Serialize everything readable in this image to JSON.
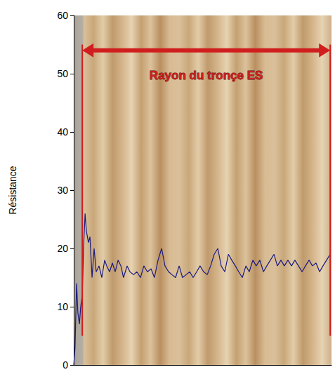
{
  "chart_data": {
    "type": "line",
    "y_label": "Résistance",
    "xlim": [
      0,
      100
    ],
    "ylim": [
      0,
      60
    ],
    "yticks": [
      0,
      10,
      20,
      30,
      40,
      50,
      60
    ],
    "grid": false,
    "tick_labels": "y",
    "color": "#1a1a80",
    "x": [
      0,
      0.5,
      1.1,
      1.6,
      2.2,
      2.7,
      3.3,
      3.8,
      4.4,
      4.9,
      5.7,
      6.3,
      7.1,
      7.9,
      8.7,
      9.8,
      10.9,
      12,
      12.8,
      13.9,
      15,
      16.1,
      17.2,
      18.3,
      19.3,
      20.7,
      21.8,
      23.2,
      24.5,
      25.9,
      27.2,
      28.6,
      30,
      31.3,
      32.7,
      34.1,
      35.4,
      36.8,
      38.1,
      39.5,
      40.9,
      42.2,
      43.6,
      45,
      46.3,
      47.7,
      49,
      50.4,
      51.8,
      53.1,
      54.5,
      55.9,
      57.2,
      58.6,
      60,
      61.3,
      62.7,
      64,
      65.4,
      66.8,
      68.1,
      69.5,
      70.8,
      72.2,
      73.6,
      74.9,
      76.3,
      77.7,
      79,
      80.4,
      81.7,
      83.1,
      84.5,
      85.8,
      87.2,
      88.6,
      89.9,
      91.3,
      92.6,
      94,
      95.4,
      96.7,
      98.1,
      99.5
    ],
    "values": [
      0,
      3,
      14,
      9,
      7,
      10,
      12,
      20,
      26,
      23,
      21,
      22,
      15,
      20,
      16,
      17,
      15,
      18,
      17,
      16,
      17.5,
      16,
      18,
      17,
      15,
      17,
      16,
      15.5,
      16,
      15,
      17,
      16,
      16.5,
      15,
      18,
      20,
      17,
      16,
      15.5,
      15,
      17,
      15,
      15.5,
      16,
      15,
      16,
      17,
      16,
      15.5,
      17,
      19,
      20,
      17,
      16,
      19,
      18,
      17,
      16,
      15,
      17,
      16,
      18,
      17,
      18,
      16,
      17,
      18,
      19,
      17,
      18,
      17,
      18,
      17,
      18,
      17,
      16,
      17,
      18,
      17,
      17.5,
      16,
      17,
      18,
      19
    ],
    "annotations": [
      {
        "type": "arrow",
        "text": "Rayon du tronçe ES",
        "x": [
          3.3,
          99.5
        ],
        "y": 54,
        "color": "#d01e1e"
      },
      {
        "type": "vline",
        "x": 3.3,
        "y": [
          5,
          55
        ],
        "color": "#d01e1e"
      },
      {
        "type": "vline",
        "x": 99.5,
        "y": [
          5,
          55
        ],
        "color": "#d01e1e"
      }
    ]
  }
}
